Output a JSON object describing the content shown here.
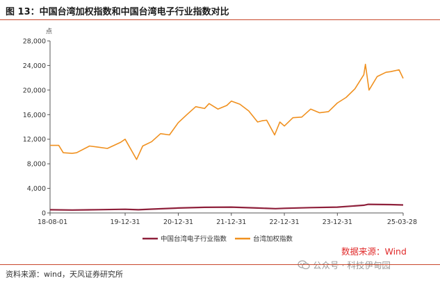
{
  "header": {
    "title": "图 13：中国台湾加权指数和中国台湾电子行业指数对比"
  },
  "chart_data": {
    "type": "line",
    "unit_label": "点",
    "title": "",
    "xlabel": "",
    "ylabel": "",
    "ylim": [
      0,
      28000
    ],
    "yticks": [
      "0",
      "4,000",
      "8,000",
      "12,000",
      "16,000",
      "20,000",
      "24,000",
      "28,000"
    ],
    "xticks": [
      "18-08-01",
      "19-12-31",
      "20-12-31",
      "21-12-31",
      "22-12-31",
      "23-12-31",
      "25-03-28"
    ],
    "legend_position": "bottom-center",
    "grid": false,
    "series": [
      {
        "name": "中国台湾电子行业指数",
        "color": "#8e1f3a",
        "x": [
          "2018-08-01",
          "2018-12-31",
          "2019-06-30",
          "2019-12-31",
          "2020-03-31",
          "2020-06-30",
          "2020-12-31",
          "2021-06-30",
          "2021-12-31",
          "2022-06-30",
          "2022-10-31",
          "2022-12-31",
          "2023-06-30",
          "2023-12-31",
          "2024-06-30",
          "2024-07-31",
          "2024-12-31",
          "2025-03-28"
        ],
        "values": [
          520,
          470,
          530,
          600,
          520,
          620,
          800,
          920,
          950,
          800,
          700,
          760,
          870,
          950,
          1250,
          1400,
          1350,
          1300
        ]
      },
      {
        "name": "台湾加权指数",
        "color": "#f0901e",
        "x": [
          "2018-08-01",
          "2018-09-30",
          "2018-10-31",
          "2018-12-31",
          "2019-01-31",
          "2019-04-30",
          "2019-06-30",
          "2019-08-31",
          "2019-11-30",
          "2019-12-31",
          "2020-03-19",
          "2020-04-30",
          "2020-06-30",
          "2020-08-31",
          "2020-10-31",
          "2020-12-31",
          "2021-02-28",
          "2021-04-30",
          "2021-06-30",
          "2021-07-31",
          "2021-09-30",
          "2021-11-30",
          "2021-12-31",
          "2022-02-28",
          "2022-04-30",
          "2022-06-30",
          "2022-07-31",
          "2022-08-31",
          "2022-10-25",
          "2022-11-30",
          "2022-12-31",
          "2023-02-28",
          "2023-04-30",
          "2023-06-30",
          "2023-08-31",
          "2023-10-31",
          "2023-12-31",
          "2024-02-29",
          "2024-04-30",
          "2024-06-30",
          "2024-07-11",
          "2024-08-05",
          "2024-09-30",
          "2024-11-30",
          "2024-12-31",
          "2025-02-28",
          "2025-03-28"
        ],
        "values": [
          11000,
          11000,
          9800,
          9700,
          9800,
          10900,
          10700,
          10500,
          11500,
          12000,
          8700,
          10900,
          11600,
          12900,
          12700,
          14700,
          16000,
          17300,
          17000,
          17800,
          16900,
          17500,
          18200,
          17700,
          16600,
          14800,
          15000,
          15100,
          12700,
          14800,
          14150,
          15500,
          15600,
          16900,
          16300,
          16500,
          17900,
          18800,
          20200,
          22500,
          24200,
          20000,
          22200,
          22900,
          23000,
          23300,
          21900
        ]
      }
    ]
  },
  "source_note": "数据来源：Wind",
  "footer": {
    "note": "资料来源：wind，天风证券研究所"
  },
  "watermark": {
    "text": "公众号 · 科技伊甸园"
  }
}
